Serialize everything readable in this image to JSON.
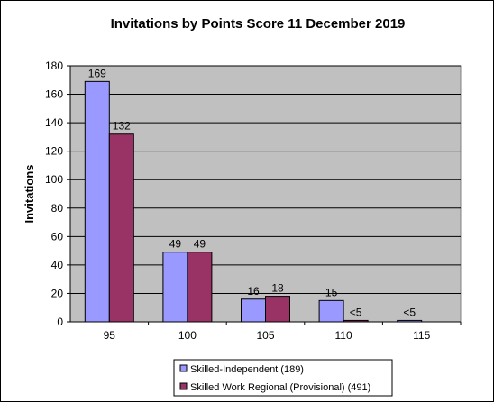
{
  "chart_data": {
    "type": "bar",
    "title": "Invitations by Points Score 11 December 2019",
    "xlabel": "",
    "ylabel": "Invitations",
    "categories": [
      "95",
      "100",
      "105",
      "110",
      "115"
    ],
    "ylim": [
      0,
      180
    ],
    "yticks": [
      "0",
      "20",
      "40",
      "60",
      "80",
      "100",
      "120",
      "140",
      "160",
      "180"
    ],
    "grid": true,
    "legend_position": "bottom",
    "series": [
      {
        "name": "Skilled-Independent (189)",
        "color": "#9999ff",
        "values": [
          169,
          49,
          16,
          15,
          1
        ],
        "labels": [
          "169",
          "49",
          "16",
          "15",
          "<5"
        ]
      },
      {
        "name": "Skilled Work Regional (Provisional) (491)",
        "color": "#993366",
        "values": [
          132,
          49,
          18,
          1,
          0
        ],
        "labels": [
          "132",
          "49",
          "18",
          "<5",
          ""
        ]
      }
    ],
    "plot_background": "#c0c0c0"
  }
}
